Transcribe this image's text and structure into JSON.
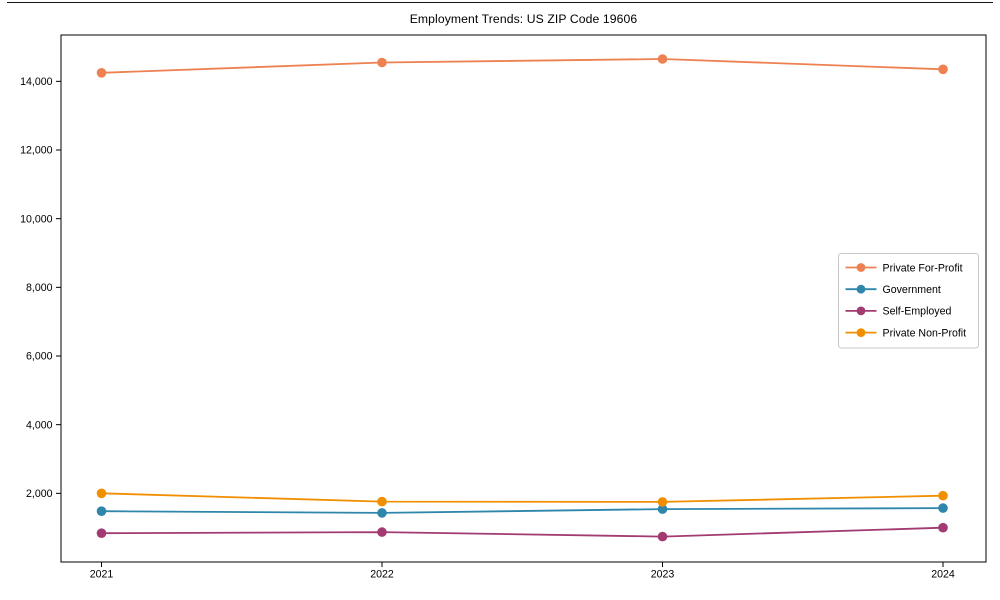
{
  "chart_data": {
    "type": "line",
    "title": "Employment Trends: US ZIP Code 19606",
    "x": [
      2021,
      2022,
      2023,
      2024
    ],
    "x_tick_labels": [
      "2021",
      "2022",
      "2023",
      "2024"
    ],
    "y_ticks": [
      2000,
      4000,
      6000,
      8000,
      10000,
      12000,
      14000
    ],
    "y_tick_labels": [
      "2,000",
      "4,000",
      "6,000",
      "8,000",
      "10,000",
      "12,000",
      "14,000"
    ],
    "ylim": [
      0,
      15350
    ],
    "grid": false,
    "legend_position": "center right",
    "marker": "circle",
    "series": [
      {
        "name": "Private For-Profit",
        "color": "#ED8152",
        "values": [
          14250,
          14550,
          14650,
          14350
        ]
      },
      {
        "name": "Government",
        "color": "#2E86AB",
        "values": [
          1480,
          1430,
          1540,
          1570
        ]
      },
      {
        "name": "Self-Employed",
        "color": "#A23B72",
        "values": [
          840,
          870,
          740,
          1000
        ]
      },
      {
        "name": "Private Non-Profit",
        "color": "#F18F01",
        "values": [
          2000,
          1760,
          1750,
          1930
        ]
      }
    ]
  }
}
